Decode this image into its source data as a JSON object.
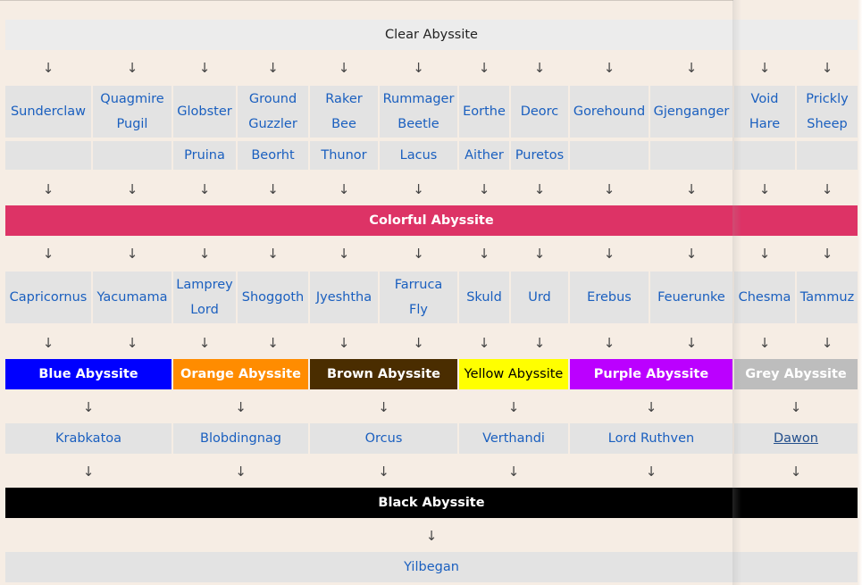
{
  "clear": "Clear Abyssite",
  "arrow": "↓",
  "row1": [
    {
      "label": "Sunderclaw"
    },
    {
      "label": "Quagmire Pugil"
    },
    {
      "label": "Globster"
    },
    {
      "label": "Ground Guzzler"
    },
    {
      "label": "Raker Bee"
    },
    {
      "label": "Rummager Beetle"
    },
    {
      "label": "Eorthe"
    },
    {
      "label": "Deorc"
    },
    {
      "label": "Gorehound"
    },
    {
      "label": "Gjenganger"
    },
    {
      "label": "Void Hare"
    },
    {
      "label": "Prickly Sheep"
    }
  ],
  "row2": [
    "",
    "",
    "Pruina",
    "Beorht",
    "Thunor",
    "Lacus",
    "Aither",
    "Puretos",
    "",
    "",
    "",
    ""
  ],
  "colorful": {
    "label": "Colorful Abyssite",
    "color": "#dd3366"
  },
  "row3": [
    "Capricornus",
    "Yacumama",
    "Lamprey Lord",
    "Shoggoth",
    "Jyeshtha",
    "Farruca Fly",
    "Skuld",
    "Urd",
    "Erebus",
    "Feuerunke",
    "Chesma",
    "Tammuz"
  ],
  "colored": [
    {
      "label": "Blue Abyssite",
      "color": "#0000ff",
      "text": "#ffffff"
    },
    {
      "label": "Orange Abyssite",
      "color": "#ff8c00",
      "text": "#ffffff"
    },
    {
      "label": "Brown Abyssite",
      "color": "#4a2d00",
      "text": "#ffffff"
    },
    {
      "label": "Yellow Abyssite",
      "color": "#ffff00",
      "text": "#000000"
    },
    {
      "label": "Purple Abyssite",
      "color": "#bb00ff",
      "text": "#ffffff"
    },
    {
      "label": "Grey Abyssite",
      "color": "#bdbdbd",
      "text": "#ffffff"
    }
  ],
  "row4": [
    "Krabkatoa",
    "Blobdingnag",
    "Orcus",
    "Verthandi",
    "Lord Ruthven",
    "Dawon"
  ],
  "black": {
    "label": "Black Abyssite",
    "color": "#000000"
  },
  "final": "Yilbegan",
  "colors": {
    "link": "#1a5fbf",
    "cell": "#e3e3e3",
    "background": "#f6ede4"
  }
}
